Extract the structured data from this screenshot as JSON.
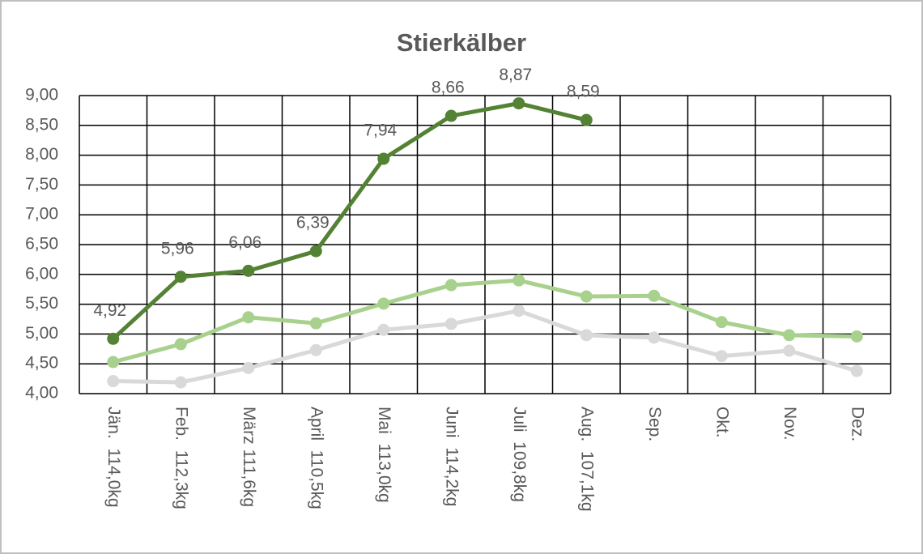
{
  "chart_data": {
    "type": "line",
    "title": "Stierkälber",
    "categories": [
      "Jän.  114,0kg",
      "Feb.  112,3kg",
      "März 111,6kg",
      "April  110,5kg",
      "Mai  113,0kg",
      "Juni  114,2kg",
      "Juli  109,8kg",
      "Aug.  107,1kg",
      "Sep.",
      "Okt.",
      "Nov.",
      "Dez."
    ],
    "series": [
      {
        "color": "#d9d9d9",
        "values": [
          4.21,
          4.19,
          4.43,
          4.73,
          5.07,
          5.17,
          5.39,
          4.98,
          4.94,
          4.63,
          4.72,
          4.38
        ]
      },
      {
        "color": "#a9d18e",
        "values": [
          4.53,
          4.83,
          5.28,
          5.18,
          5.51,
          5.82,
          5.9,
          5.63,
          5.64,
          5.2,
          4.98,
          4.96
        ]
      },
      {
        "color": "#548235",
        "values": [
          4.92,
          5.96,
          6.06,
          6.39,
          7.94,
          8.66,
          8.87,
          8.59,
          null,
          null,
          null,
          null
        ],
        "value_labels": [
          "4,92",
          "5,96",
          "6,06",
          "6,39",
          "7,94",
          "8,66",
          "8,87",
          "8,59",
          null,
          null,
          null,
          null
        ]
      }
    ],
    "ylim": [
      4,
      9
    ],
    "yticks": [
      {
        "value": 4,
        "label": "4,00"
      },
      {
        "value": 4.5,
        "label": "4,50"
      },
      {
        "value": 5,
        "label": "5,00"
      },
      {
        "value": 5.5,
        "label": "5,50"
      },
      {
        "value": 6,
        "label": "6,00"
      },
      {
        "value": 6.5,
        "label": "6,50"
      },
      {
        "value": 7,
        "label": "7,00"
      },
      {
        "value": 7.5,
        "label": "7,50"
      },
      {
        "value": 8,
        "label": "8,00"
      },
      {
        "value": 8.5,
        "label": "8,50"
      },
      {
        "value": 9,
        "label": "9,00"
      }
    ],
    "grid": true
  }
}
